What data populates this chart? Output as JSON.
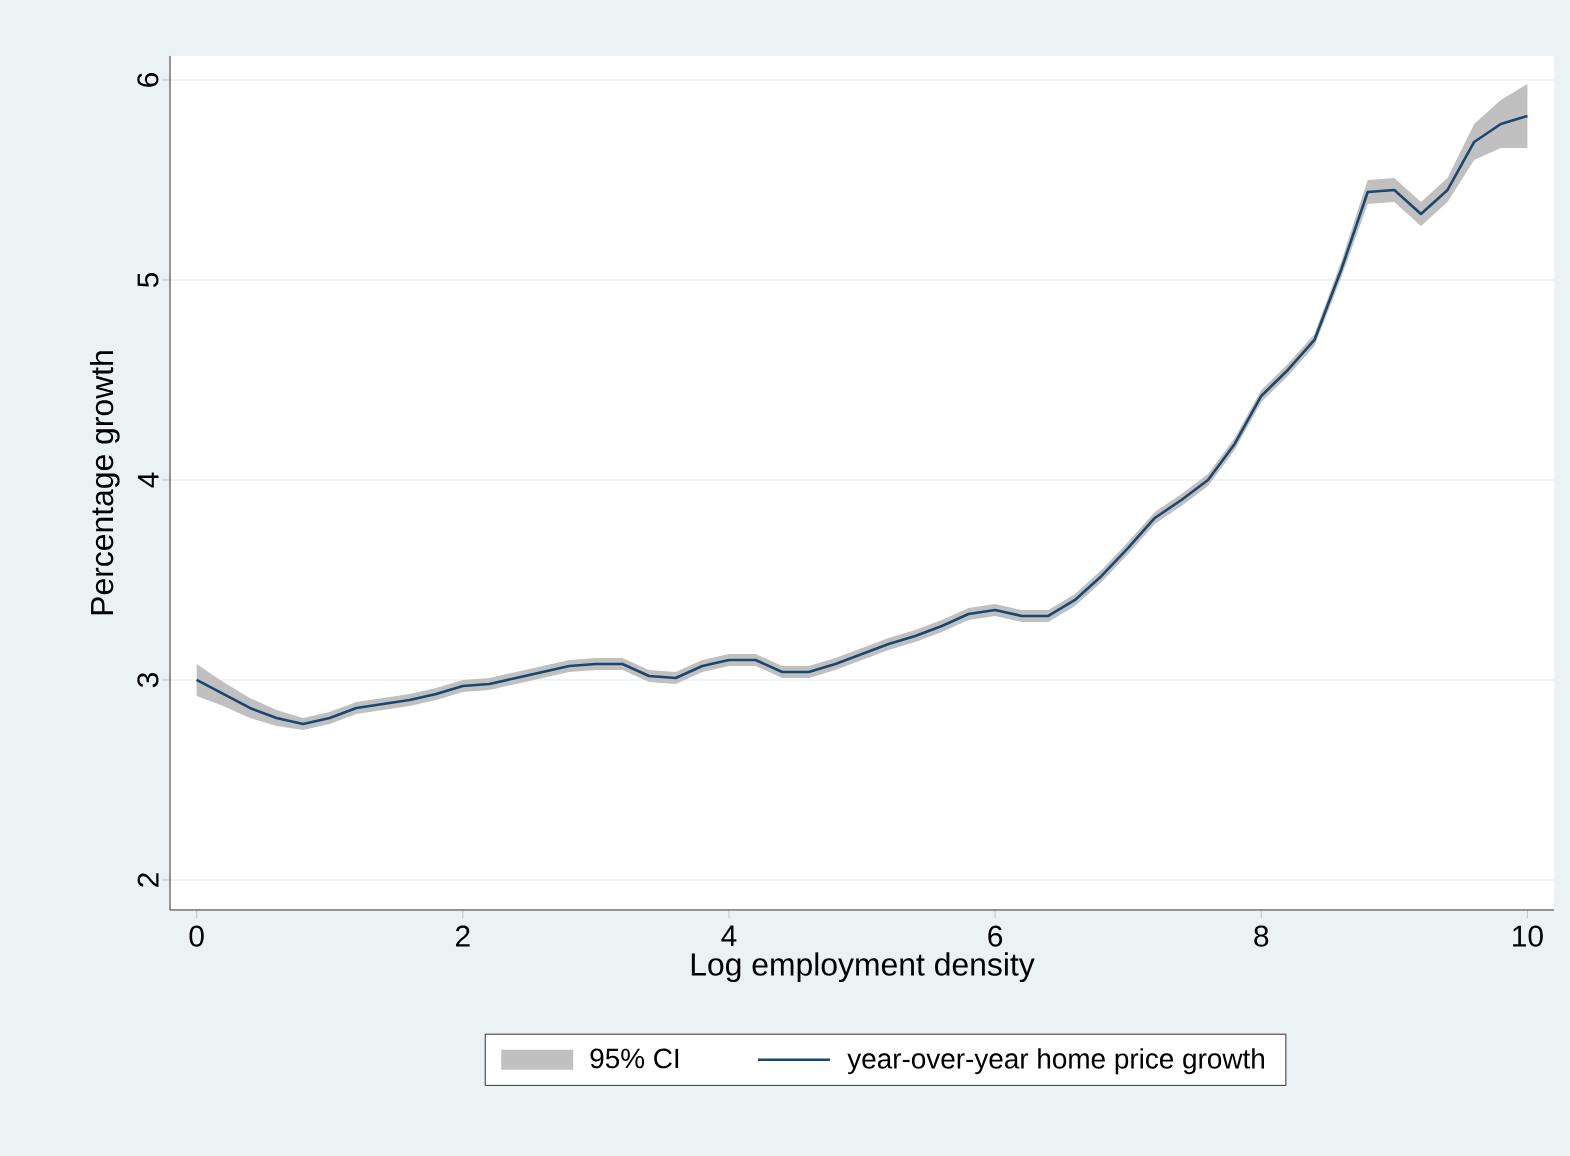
{
  "chart_data": {
    "type": "line",
    "xlabel": "Log employment density",
    "ylabel": "Percentage growth",
    "annotations": [
      "95% CI"
    ],
    "x": [
      0,
      0.2,
      0.4,
      0.6,
      0.8,
      1.0,
      1.2,
      1.4,
      1.6,
      1.8,
      2.0,
      2.2,
      2.4,
      2.6,
      2.8,
      3.0,
      3.2,
      3.4,
      3.6,
      3.8,
      4.0,
      4.2,
      4.4,
      4.6,
      4.8,
      5.0,
      5.2,
      5.4,
      5.6,
      5.8,
      6.0,
      6.2,
      6.4,
      6.6,
      6.8,
      7.0,
      7.2,
      7.4,
      7.6,
      7.8,
      8.0,
      8.2,
      8.4,
      8.6,
      8.8,
      9.0,
      9.2,
      9.4,
      9.6,
      9.8,
      10.0
    ],
    "series": [
      {
        "name": "year-over-year home price growth",
        "color": "#1a476f",
        "values": [
          3.0,
          2.93,
          2.86,
          2.81,
          2.78,
          2.81,
          2.86,
          2.88,
          2.9,
          2.93,
          2.97,
          2.98,
          3.01,
          3.04,
          3.07,
          3.08,
          3.08,
          3.02,
          3.01,
          3.07,
          3.1,
          3.1,
          3.04,
          3.04,
          3.08,
          3.13,
          3.18,
          3.22,
          3.27,
          3.33,
          3.35,
          3.32,
          3.32,
          3.4,
          3.52,
          3.66,
          3.81,
          3.9,
          4.0,
          4.18,
          4.42,
          4.55,
          4.7,
          5.05,
          5.44,
          5.45,
          5.33,
          5.45,
          5.69,
          5.78,
          5.82
        ],
        "lower": [
          2.92,
          2.87,
          2.81,
          2.77,
          2.75,
          2.78,
          2.83,
          2.85,
          2.87,
          2.9,
          2.94,
          2.95,
          2.98,
          3.01,
          3.04,
          3.05,
          3.05,
          2.99,
          2.98,
          3.04,
          3.07,
          3.07,
          3.01,
          3.01,
          3.05,
          3.1,
          3.15,
          3.19,
          3.24,
          3.3,
          3.32,
          3.29,
          3.29,
          3.37,
          3.49,
          3.63,
          3.78,
          3.87,
          3.97,
          4.15,
          4.39,
          4.52,
          4.67,
          5.01,
          5.38,
          5.39,
          5.27,
          5.39,
          5.6,
          5.66,
          5.66
        ],
        "upper": [
          3.08,
          2.99,
          2.91,
          2.85,
          2.81,
          2.84,
          2.89,
          2.91,
          2.93,
          2.96,
          3.0,
          3.01,
          3.04,
          3.07,
          3.1,
          3.11,
          3.11,
          3.05,
          3.04,
          3.1,
          3.13,
          3.13,
          3.07,
          3.07,
          3.11,
          3.16,
          3.21,
          3.25,
          3.3,
          3.36,
          3.38,
          3.35,
          3.35,
          3.43,
          3.55,
          3.69,
          3.84,
          3.93,
          4.03,
          4.21,
          4.45,
          4.58,
          4.73,
          5.09,
          5.5,
          5.51,
          5.39,
          5.51,
          5.78,
          5.9,
          5.98
        ]
      }
    ],
    "xlim": [
      -0.2,
      10.2
    ],
    "ylim": [
      1.85,
      6.12
    ],
    "xticks": [
      0,
      2,
      4,
      6,
      8,
      10
    ],
    "yticks": [
      2,
      3,
      4,
      5,
      6
    ],
    "grid": "y",
    "legend": "bottom",
    "marker": "none",
    "line_style": "solid"
  }
}
